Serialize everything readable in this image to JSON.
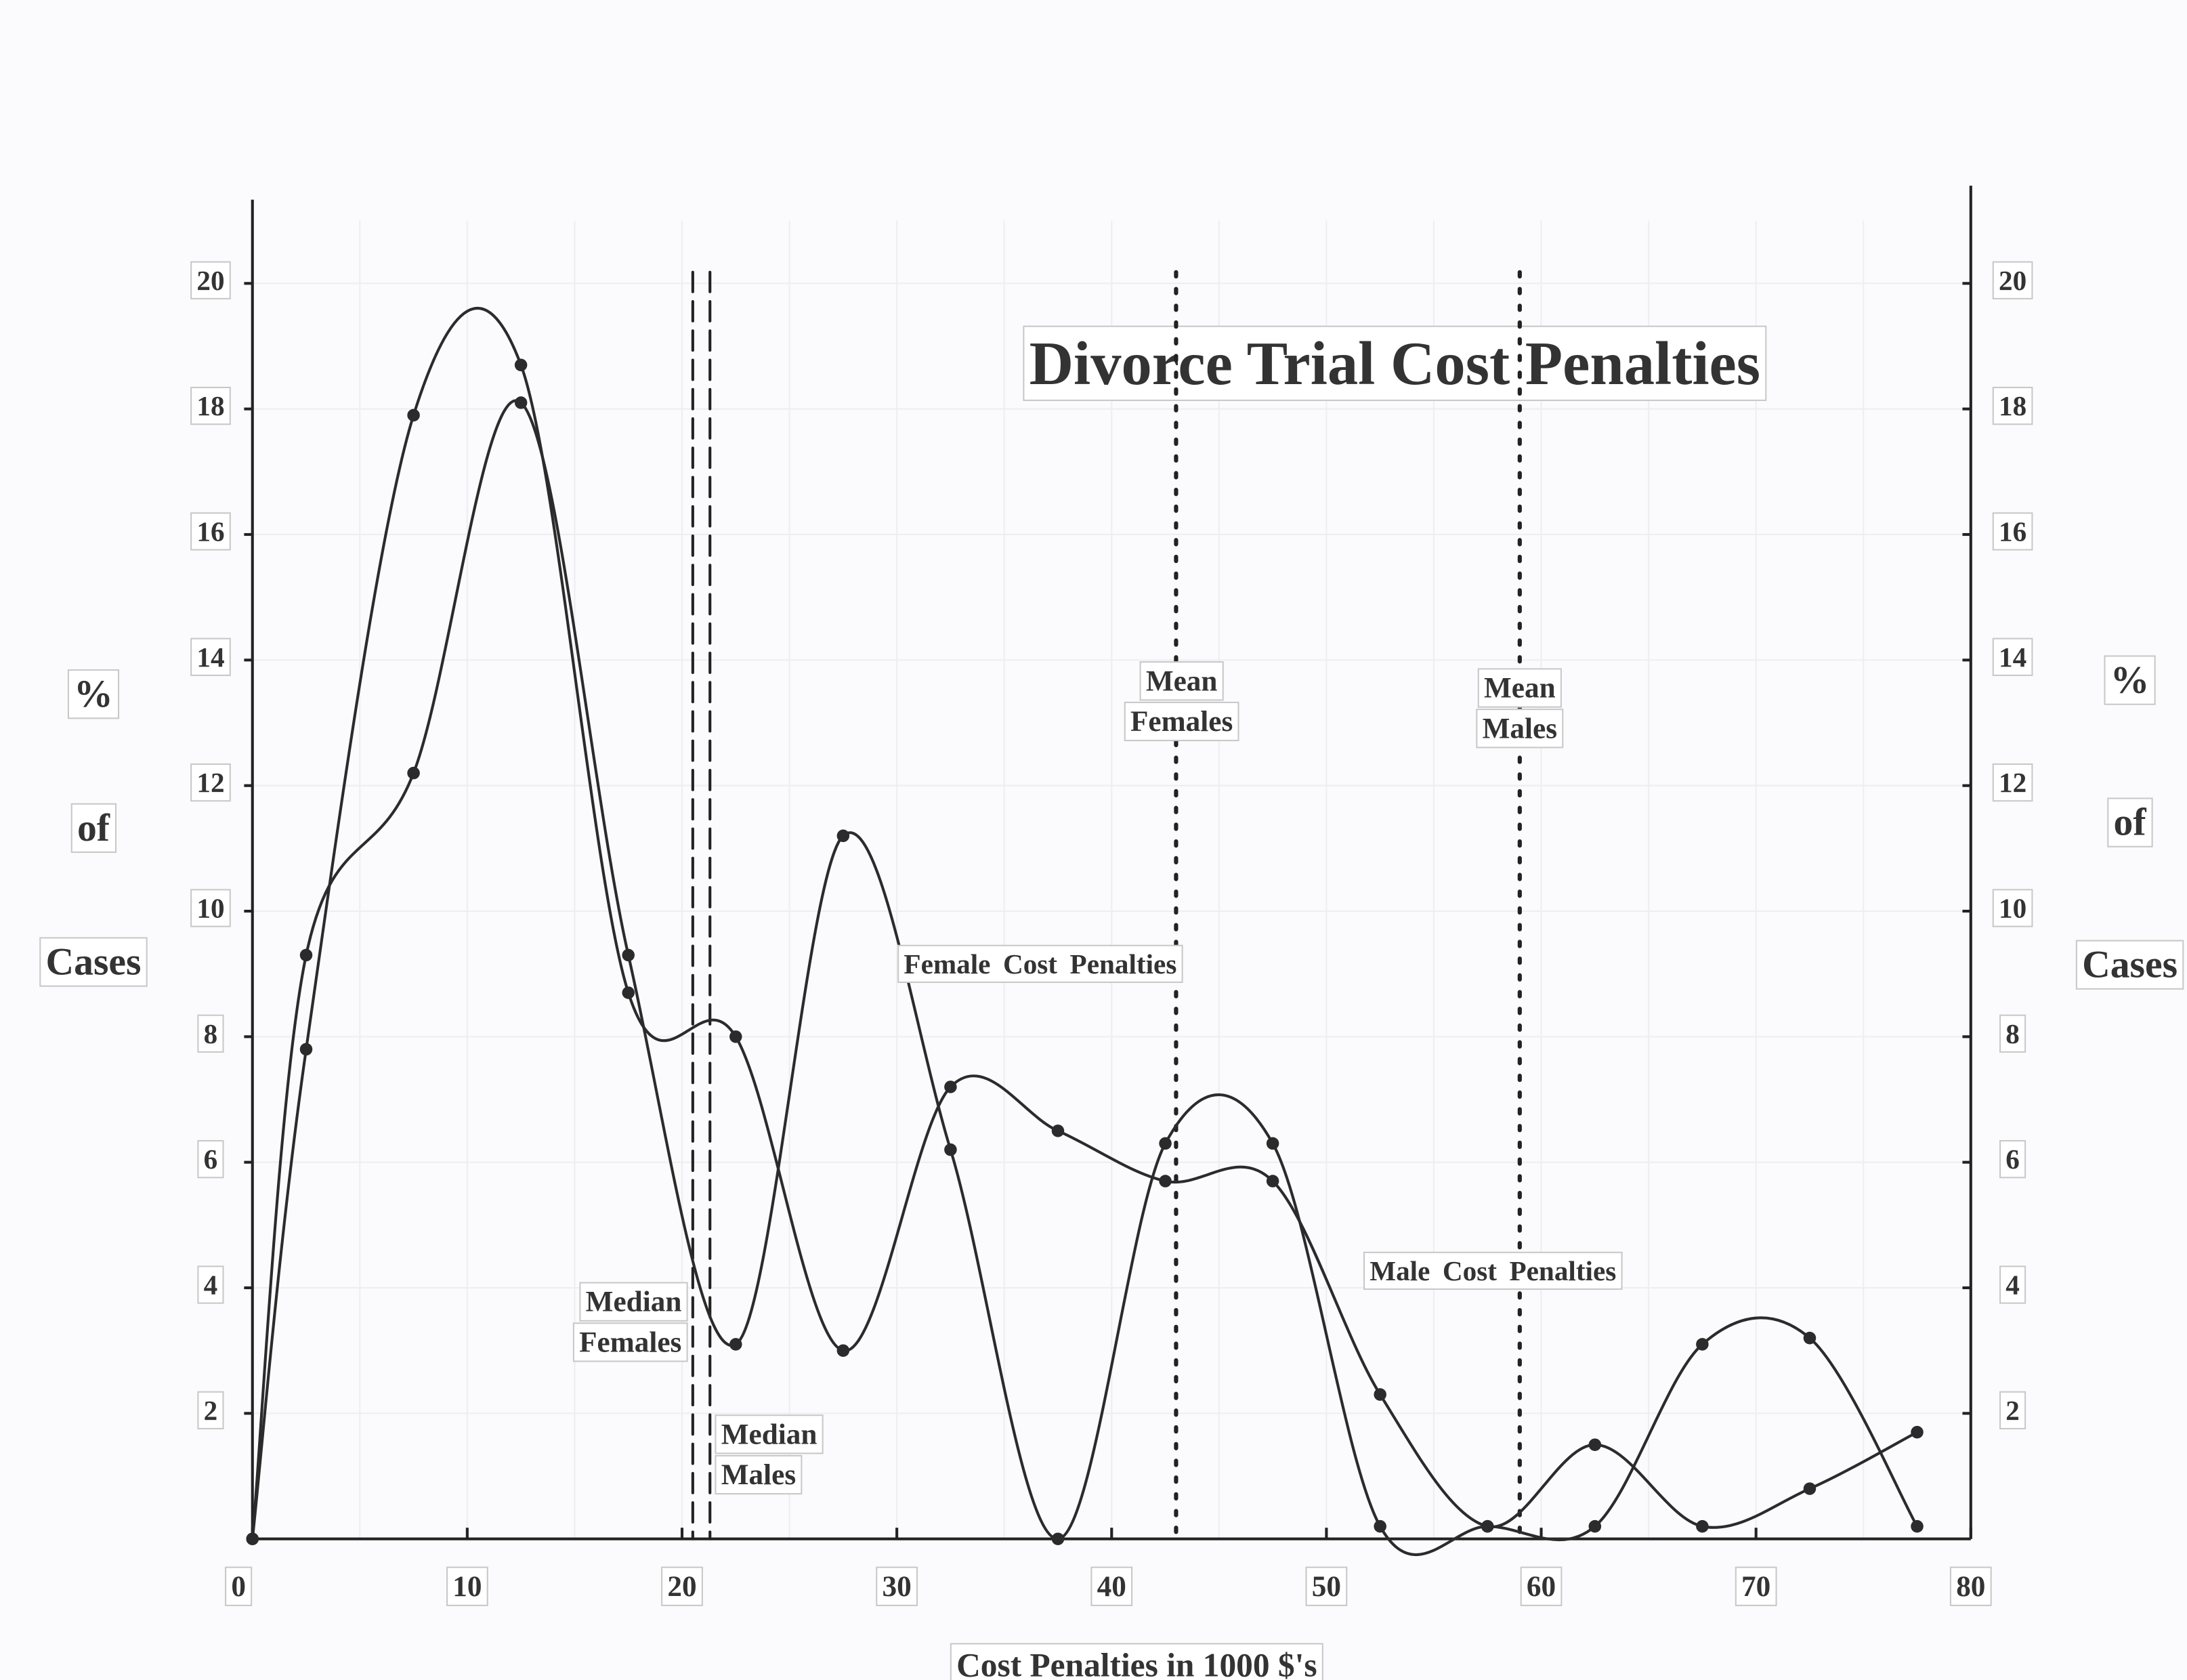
{
  "chart_data": {
    "type": "line",
    "title": "Divorce Trial Cost Penalties",
    "x_label": "Cost Penalties in 1000 $'s",
    "y_label": [
      "%",
      "of",
      "Cases"
    ],
    "y2_label": [
      "%",
      "of",
      "Cases"
    ],
    "x": [
      0,
      2.5,
      7.5,
      12.5,
      17.5,
      22.5,
      27.5,
      32.5,
      37.5,
      42.5,
      47.5,
      52.5,
      57.5,
      62.5,
      67.5,
      72.5,
      77.5
    ],
    "series": [
      {
        "name": "Female Cost Penalties",
        "color": "#2b2b2b",
        "values": [
          0,
          9.3,
          12.2,
          18.1,
          9.3,
          3.1,
          11.2,
          6.2,
          0,
          6.3,
          6.3,
          0.2,
          0.2,
          0.2,
          3.1,
          3.2,
          0.2
        ]
      },
      {
        "name": "Male Cost Penalties",
        "color": "#2b2b2b",
        "values": [
          0,
          7.8,
          17.9,
          18.7,
          8.7,
          8.0,
          3.0,
          7.2,
          6.5,
          5.7,
          5.7,
          2.3,
          0.2,
          1.5,
          0.2,
          0.8,
          1.7
        ]
      }
    ],
    "xlim": [
      0,
      80
    ],
    "xticks": [
      0,
      10,
      20,
      30,
      40,
      50,
      60,
      70,
      80
    ],
    "ylim": [
      0,
      21
    ],
    "yticks": [
      2,
      4,
      6,
      8,
      10,
      12,
      14,
      16,
      18,
      20
    ],
    "y2lim": [
      0,
      21
    ],
    "y2ticks": [
      2,
      4,
      6,
      8,
      10,
      12,
      14,
      16,
      18,
      20
    ],
    "reference_lines": [
      {
        "label": [
          "Median",
          "Females"
        ],
        "x": 20.5,
        "style": "dashed"
      },
      {
        "label": [
          "Median",
          "Males"
        ],
        "x": 21.3,
        "style": "dashed"
      },
      {
        "label": [
          "Mean",
          "Females"
        ],
        "x": 43,
        "style": "dotted"
      },
      {
        "label": [
          "Mean",
          "Males"
        ],
        "x": 59,
        "style": "dotted"
      }
    ]
  }
}
